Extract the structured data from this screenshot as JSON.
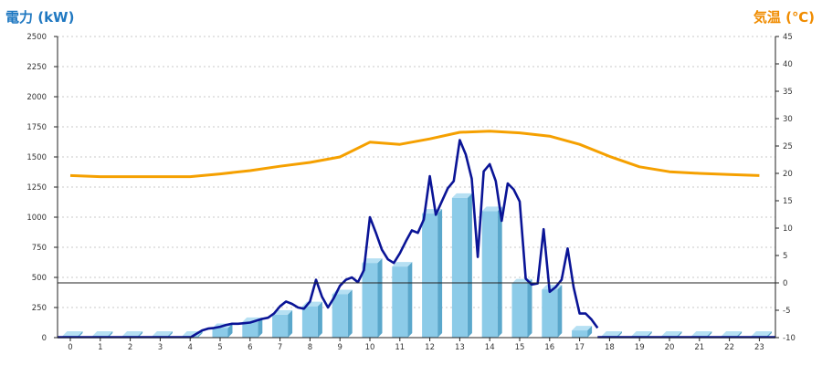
{
  "chart_data": {
    "type": "bar",
    "y_left_label": "電力 (kW)",
    "y_right_label": "気温 (℃)",
    "y_left_ticks": [
      "0",
      "250",
      "500",
      "750",
      "1000",
      "1250",
      "1500",
      "1750",
      "2000",
      "2250",
      "2500"
    ],
    "y_right_ticks": [
      "-10",
      "-5",
      "0",
      "5",
      "10",
      "15",
      "20",
      "25",
      "30",
      "35",
      "40",
      "45"
    ],
    "x_ticks": [
      "0",
      "1",
      "2",
      "3",
      "4",
      "5",
      "6",
      "7",
      "8",
      "9",
      "10",
      "11",
      "12",
      "13",
      "14",
      "15",
      "16",
      "17",
      "18",
      "19",
      "20",
      "21",
      "22",
      "23"
    ],
    "ylim_left": [
      0,
      2500
    ],
    "ylim_right": [
      -10,
      45
    ],
    "grid": true,
    "reference_line_right": 0,
    "colors": {
      "left_axis_title": "#1f78c1",
      "right_axis_title": "#f08c00",
      "bar_front": "#8ccbe8",
      "bar_side": "#5aa7cb",
      "bar_top": "#b6e0f3",
      "power_line": "#0a1496",
      "temperature_line": "#f5a000",
      "grid": "#c8c8c8"
    },
    "series": [
      {
        "type": "bar",
        "axis": "left",
        "x": [
          0,
          1,
          2,
          3,
          4,
          5,
          6,
          7,
          8,
          9,
          10,
          11,
          12,
          13,
          14,
          15,
          16,
          17,
          18,
          19,
          20,
          21,
          22,
          23
        ],
        "values": [
          15,
          15,
          15,
          15,
          15,
          80,
          130,
          190,
          260,
          360,
          620,
          590,
          1030,
          1160,
          1050,
          450,
          400,
          60,
          15,
          15,
          15,
          15,
          15,
          15
        ]
      },
      {
        "type": "line",
        "axis": "left",
        "x": [
          4.0,
          4.2,
          4.4,
          4.6,
          4.8,
          5.0,
          5.2,
          5.4,
          5.6,
          5.8,
          6.0,
          6.2,
          6.4,
          6.6,
          6.8,
          7.0,
          7.2,
          7.4,
          7.6,
          7.8,
          8.0,
          8.2,
          8.4,
          8.6,
          8.8,
          9.0,
          9.2,
          9.4,
          9.6,
          9.8,
          10.0,
          10.2,
          10.4,
          10.6,
          10.8,
          11.0,
          11.2,
          11.4,
          11.6,
          11.8,
          12.0,
          12.2,
          12.4,
          12.6,
          12.8,
          13.0,
          13.2,
          13.4,
          13.6,
          13.8,
          14.0,
          14.2,
          14.4,
          14.6,
          14.8,
          15.0,
          15.2,
          15.4,
          15.6,
          15.8,
          16.0,
          16.2,
          16.4,
          16.6,
          16.8,
          17.0,
          17.2,
          17.4,
          17.6
        ],
        "values": [
          0,
          30,
          60,
          75,
          80,
          90,
          105,
          115,
          115,
          120,
          125,
          140,
          155,
          165,
          200,
          260,
          300,
          280,
          250,
          240,
          300,
          480,
          340,
          250,
          330,
          430,
          480,
          500,
          460,
          560,
          1000,
          870,
          730,
          650,
          620,
          700,
          800,
          890,
          870,
          980,
          1340,
          1020,
          1130,
          1240,
          1300,
          1640,
          1520,
          1320,
          670,
          1380,
          1440,
          1300,
          970,
          1280,
          1230,
          1130,
          490,
          440,
          450,
          900,
          380,
          420,
          480,
          740,
          420,
          200,
          200,
          150,
          80
        ]
      },
      {
        "type": "line",
        "axis": "right",
        "x": [
          0,
          0.5,
          1,
          2,
          3,
          4,
          5,
          6,
          7,
          8,
          9,
          10,
          11,
          12,
          13,
          14,
          15,
          16,
          17,
          18,
          19,
          20,
          21,
          22,
          23
        ],
        "values": [
          19.6,
          19.5,
          19.4,
          19.4,
          19.4,
          19.4,
          19.9,
          20.5,
          21.3,
          22.0,
          23.0,
          25.7,
          25.3,
          26.3,
          27.5,
          27.7,
          27.4,
          26.8,
          25.3,
          23.1,
          21.2,
          20.3,
          20.0,
          19.8,
          19.6
        ]
      }
    ]
  }
}
